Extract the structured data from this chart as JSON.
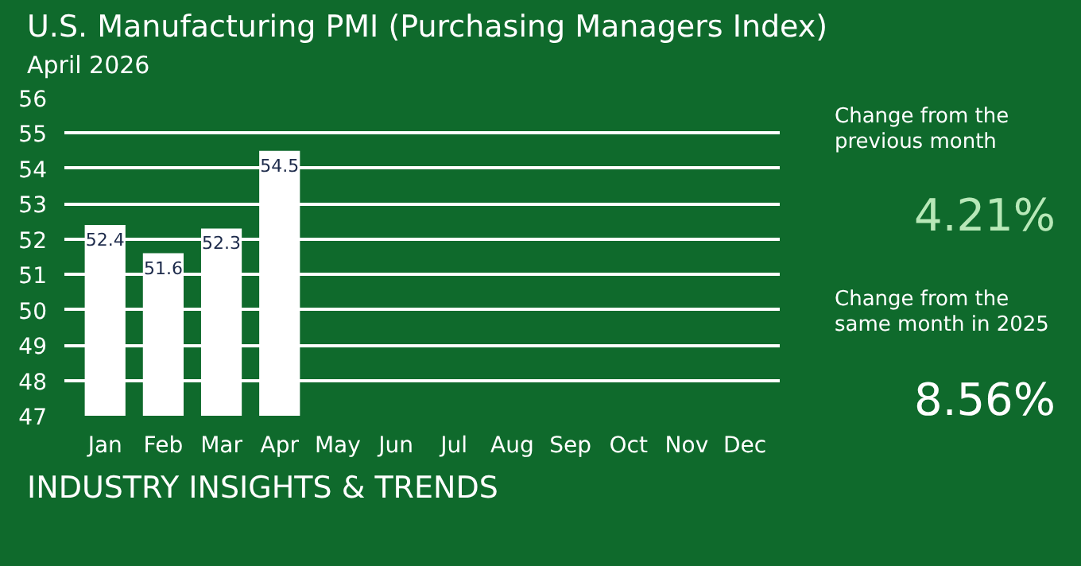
{
  "chart_data": {
    "type": "bar",
    "title": "U.S. Manufacturing PMI (Purchasing Managers Index)",
    "subtitle": "April 2026",
    "categories": [
      "Jan",
      "Feb",
      "Mar",
      "Apr",
      "May",
      "Jun",
      "Jul",
      "Aug",
      "Sep",
      "Oct",
      "Nov",
      "Dec"
    ],
    "values": [
      52.4,
      51.6,
      52.3,
      54.5,
      null,
      null,
      null,
      null,
      null,
      null,
      null,
      null
    ],
    "color": "#ffffff",
    "data_labels": true,
    "grid": "y",
    "ylim": [
      47,
      56
    ],
    "yticks": [
      47,
      48,
      49,
      50,
      51,
      52,
      53,
      54,
      55,
      56
    ],
    "annotations": [
      "Change from the\nprevious month",
      "4.21%",
      "Change from the\nsame month in 2025",
      "8.56%",
      "INDUSTRY INSIGHTS & TRENDS"
    ]
  }
}
